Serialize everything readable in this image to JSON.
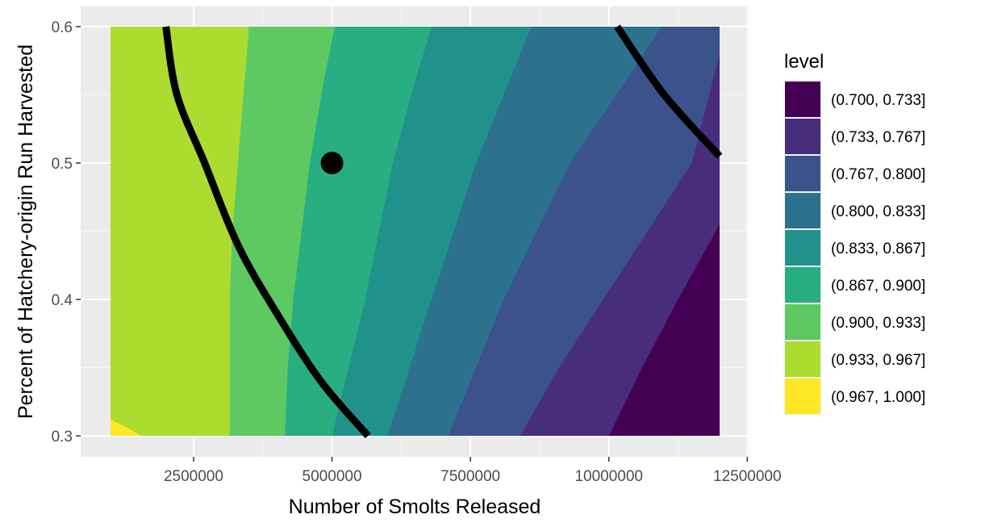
{
  "chart_data": {
    "type": "filled-contour",
    "xlabel": "Number of Smolts Released",
    "ylabel": "Percent of Hatchery-origin Run Harvested",
    "xlim": [
      1000000,
      12000000
    ],
    "ylim": [
      0.3,
      0.6
    ],
    "x_ticks": [
      2500000,
      5000000,
      7500000,
      10000000,
      12500000
    ],
    "x_tick_labels": [
      "2500000",
      "5000000",
      "7500000",
      "10000000",
      "12500000"
    ],
    "y_ticks": [
      0.3,
      0.4,
      0.5,
      0.6
    ],
    "y_tick_labels": [
      "0.3",
      "0.4",
      "0.5",
      "0.6"
    ],
    "grid": true,
    "legend": {
      "title": "level",
      "placement": "right",
      "entries": [
        {
          "label": "(0.700, 0.733]",
          "color": "#440154"
        },
        {
          "label": "(0.733, 0.767]",
          "color": "#472d7b"
        },
        {
          "label": "(0.767, 0.800]",
          "color": "#3b528b"
        },
        {
          "label": "(0.800, 0.833]",
          "color": "#2c728e"
        },
        {
          "label": "(0.833, 0.867]",
          "color": "#21918c"
        },
        {
          "label": "(0.867, 0.900]",
          "color": "#28ae80"
        },
        {
          "label": "(0.900, 0.933]",
          "color": "#5ec962"
        },
        {
          "label": "(0.933, 0.967]",
          "color": "#addc30"
        },
        {
          "label": "(0.967, 1.000]",
          "color": "#fde725"
        }
      ]
    },
    "contour_boundaries": [
      {
        "level": 0.733,
        "points": [
          [
            10000000,
            0.3
          ],
          [
            10600000,
            0.35
          ],
          [
            11250000,
            0.4
          ],
          [
            12000000,
            0.455
          ]
        ]
      },
      {
        "level": 0.767,
        "points": [
          [
            8400000,
            0.3
          ],
          [
            9100000,
            0.35
          ],
          [
            9900000,
            0.4
          ],
          [
            10700000,
            0.45
          ],
          [
            11500000,
            0.5
          ],
          [
            12000000,
            0.58
          ]
        ]
      },
      {
        "level": 0.8,
        "points": [
          [
            7100000,
            0.3
          ],
          [
            7600000,
            0.35
          ],
          [
            8100000,
            0.4
          ],
          [
            8700000,
            0.45
          ],
          [
            9300000,
            0.5
          ],
          [
            10300000,
            0.56
          ],
          [
            10950000,
            0.6
          ]
        ]
      },
      {
        "level": 0.833,
        "points": [
          [
            6000000,
            0.3
          ],
          [
            6400000,
            0.35
          ],
          [
            6800000,
            0.4
          ],
          [
            7200000,
            0.45
          ],
          [
            7600000,
            0.5
          ],
          [
            8200000,
            0.56
          ],
          [
            8600000,
            0.6
          ]
        ]
      },
      {
        "level": 0.867,
        "points": [
          [
            5000000,
            0.3
          ],
          [
            5300000,
            0.35
          ],
          [
            5600000,
            0.4
          ],
          [
            5850000,
            0.45
          ],
          [
            6100000,
            0.5
          ],
          [
            6500000,
            0.56
          ],
          [
            6800000,
            0.6
          ]
        ]
      },
      {
        "level": 0.9,
        "points": [
          [
            4150000,
            0.3
          ],
          [
            4200000,
            0.35
          ],
          [
            4300000,
            0.4
          ],
          [
            4450000,
            0.45
          ],
          [
            4600000,
            0.5
          ],
          [
            4850000,
            0.56
          ],
          [
            5050000,
            0.6
          ]
        ]
      },
      {
        "level": 0.933,
        "points": [
          [
            3150000,
            0.3
          ],
          [
            3150000,
            0.35
          ],
          [
            3150000,
            0.4
          ],
          [
            3200000,
            0.45
          ],
          [
            3300000,
            0.5
          ],
          [
            3400000,
            0.55
          ],
          [
            3500000,
            0.6
          ]
        ]
      },
      {
        "level": 0.967,
        "points": [
          [
            1000000,
            0.312
          ],
          [
            1300000,
            0.306
          ],
          [
            1550000,
            0.3
          ]
        ]
      }
    ],
    "threshold_lines": [
      {
        "points": [
          [
            2000000,
            0.6
          ],
          [
            2200000,
            0.55
          ],
          [
            2700000,
            0.5
          ],
          [
            3300000,
            0.44
          ],
          [
            4000000,
            0.39
          ],
          [
            4800000,
            0.34
          ],
          [
            5650000,
            0.3
          ]
        ]
      },
      {
        "points": [
          [
            10150000,
            0.6
          ],
          [
            11000000,
            0.55
          ],
          [
            12000000,
            0.505
          ]
        ]
      }
    ],
    "points": [
      {
        "x": 5000000,
        "y": 0.5
      }
    ]
  }
}
